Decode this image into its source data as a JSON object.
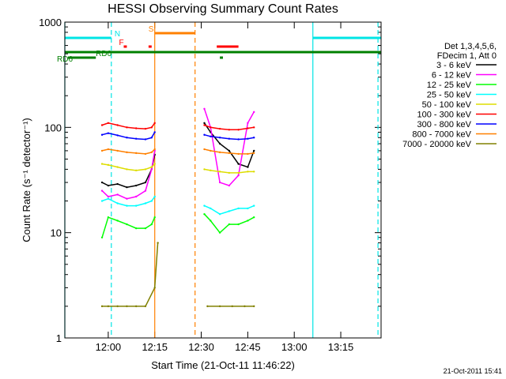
{
  "chart_data": {
    "type": "line",
    "title": "HESSI Observing Summary Count Rates",
    "xlabel": "Start Time (21-Oct-11 11:46:22)",
    "ylabel": "Count Rate (s⁻¹ detector⁻¹)",
    "yscale": "log",
    "ylim": [
      1,
      1000
    ],
    "xlim": [
      "11:46",
      "13:28"
    ],
    "x_ticks": [
      "12:00",
      "12:15",
      "12:30",
      "12:45",
      "13:00",
      "13:15"
    ],
    "y_ticks": [
      "1",
      "10",
      "100",
      "1000"
    ],
    "timestamp": "21-Oct-2011 15:41",
    "legend_header": [
      "Det 1,3,4,5,6,",
      "FDecim 1, Att 0"
    ],
    "flags": [
      {
        "label": "N",
        "color": "#00e5e5",
        "segments": [
          [
            "11:46",
            "12:01"
          ],
          [
            "13:06",
            "13:28"
          ]
        ]
      },
      {
        "label": "S",
        "color": "#ff8000",
        "segments": [
          [
            "12:15",
            "12:28"
          ]
        ]
      },
      {
        "label": "F",
        "color": "#ff0000",
        "segments": [
          [
            "12:05",
            "12:06"
          ],
          [
            "12:13",
            "12:14"
          ],
          [
            "12:35",
            "12:42"
          ]
        ]
      },
      {
        "label": "RD0",
        "color": "#008000",
        "segments": [
          [
            "11:46",
            "13:28"
          ]
        ]
      },
      {
        "label": "RD6",
        "color": "#008000",
        "segments": [
          [
            "11:47",
            "11:56"
          ],
          [
            "12:36",
            "12:37"
          ]
        ]
      }
    ],
    "vlines": [
      {
        "t": "11:46",
        "color": "#00e5e5",
        "style": "solid"
      },
      {
        "t": "12:01",
        "color": "#00e5e5",
        "style": "dashed"
      },
      {
        "t": "12:15",
        "color": "#ff8000",
        "style": "solid"
      },
      {
        "t": "12:28",
        "color": "#ff8000",
        "style": "dashed"
      },
      {
        "t": "13:06",
        "color": "#00e5e5",
        "style": "solid"
      },
      {
        "t": "13:27",
        "color": "#00e5e5",
        "style": "dashed"
      }
    ],
    "series": [
      {
        "name": "3 - 6 keV",
        "color": "#000000",
        "segments": [
          {
            "x": [
              "11:58",
              "12:00",
              "12:03",
              "12:06",
              "12:09",
              "12:12",
              "12:14",
              "12:15"
            ],
            "y": [
              30,
              28,
              29,
              27,
              28,
              30,
              40,
              55
            ]
          },
          {
            "x": [
              "12:31",
              "12:33",
              "12:36",
              "12:39",
              "12:42",
              "12:45",
              "12:47"
            ],
            "y": [
              110,
              90,
              70,
              60,
              45,
              42,
              60
            ]
          }
        ]
      },
      {
        "name": "6 - 12 keV",
        "color": "#ff00ff",
        "segments": [
          {
            "x": [
              "11:58",
              "12:00",
              "12:03",
              "12:06",
              "12:09",
              "12:12",
              "12:14",
              "12:15"
            ],
            "y": [
              25,
              22,
              23,
              21,
              22,
              25,
              40,
              60
            ]
          },
          {
            "x": [
              "12:31",
              "12:33",
              "12:36",
              "12:39",
              "12:42",
              "12:45",
              "12:47"
            ],
            "y": [
              150,
              100,
              30,
              28,
              35,
              110,
              140
            ]
          }
        ]
      },
      {
        "name": "12 - 25 keV",
        "color": "#00ff00",
        "segments": [
          {
            "x": [
              "11:58",
              "12:00",
              "12:03",
              "12:06",
              "12:09",
              "12:12",
              "12:14",
              "12:15"
            ],
            "y": [
              9,
              14,
              13,
              12,
              11,
              11,
              12,
              14
            ]
          },
          {
            "x": [
              "12:31",
              "12:33",
              "12:36",
              "12:39",
              "12:42",
              "12:45",
              "12:47"
            ],
            "y": [
              15,
              13,
              10,
              12,
              12,
              13,
              14
            ]
          }
        ]
      },
      {
        "name": "25 - 50 keV",
        "color": "#00ffff",
        "segments": [
          {
            "x": [
              "11:58",
              "12:00",
              "12:03",
              "12:06",
              "12:09",
              "12:12",
              "12:14",
              "12:15"
            ],
            "y": [
              20,
              21,
              19,
              18,
              18,
              19,
              20,
              22
            ]
          },
          {
            "x": [
              "12:31",
              "12:33",
              "12:36",
              "12:39",
              "12:42",
              "12:45",
              "12:47"
            ],
            "y": [
              18,
              17,
              15,
              16,
              17,
              17,
              18
            ]
          }
        ]
      },
      {
        "name": "50 - 100 keV",
        "color": "#dddd00",
        "segments": [
          {
            "x": [
              "11:58",
              "12:00",
              "12:03",
              "12:06",
              "12:09",
              "12:12",
              "12:14",
              "12:15"
            ],
            "y": [
              45,
              44,
              42,
              40,
              39,
              40,
              42,
              45
            ]
          },
          {
            "x": [
              "12:31",
              "12:33",
              "12:36",
              "12:39",
              "12:42",
              "12:45",
              "12:47"
            ],
            "y": [
              40,
              39,
              38,
              37,
              37,
              38,
              38
            ]
          }
        ]
      },
      {
        "name": "100 - 300 keV",
        "color": "#ff0000",
        "segments": [
          {
            "x": [
              "11:58",
              "12:00",
              "12:03",
              "12:06",
              "12:09",
              "12:12",
              "12:14",
              "12:15"
            ],
            "y": [
              105,
              110,
              105,
              100,
              98,
              97,
              100,
              110
            ]
          },
          {
            "x": [
              "12:31",
              "12:33",
              "12:36",
              "12:39",
              "12:42",
              "12:45",
              "12:47"
            ],
            "y": [
              105,
              100,
              97,
              95,
              95,
              98,
              100
            ]
          }
        ]
      },
      {
        "name": "300 - 800 keV",
        "color": "#0000ff",
        "segments": [
          {
            "x": [
              "11:58",
              "12:00",
              "12:03",
              "12:06",
              "12:09",
              "12:12",
              "12:14",
              "12:15"
            ],
            "y": [
              85,
              88,
              84,
              80,
              78,
              77,
              80,
              90
            ]
          },
          {
            "x": [
              "12:31",
              "12:33",
              "12:36",
              "12:39",
              "12:42",
              "12:45",
              "12:47"
            ],
            "y": [
              85,
              82,
              80,
              78,
              77,
              78,
              80
            ]
          }
        ]
      },
      {
        "name": "800 - 7000 keV",
        "color": "#ff8000",
        "segments": [
          {
            "x": [
              "11:58",
              "12:00",
              "12:03",
              "12:06",
              "12:09",
              "12:12",
              "12:14",
              "12:15"
            ],
            "y": [
              60,
              62,
              60,
              58,
              57,
              56,
              58,
              62
            ]
          },
          {
            "x": [
              "12:31",
              "12:33",
              "12:36",
              "12:39",
              "12:42",
              "12:45",
              "12:47"
            ],
            "y": [
              62,
              60,
              58,
              57,
              56,
              56,
              57
            ]
          }
        ]
      },
      {
        "name": "7000 - 20000 keV",
        "color": "#808000",
        "segments": [
          {
            "x": [
              "11:58",
              "12:00",
              "12:03",
              "12:06",
              "12:09",
              "12:12",
              "12:15",
              "12:16"
            ],
            "y": [
              2,
              2,
              2,
              2,
              2,
              2,
              3,
              8
            ]
          },
          {
            "x": [
              "12:32",
              "12:36",
              "12:40",
              "12:44",
              "12:47"
            ],
            "y": [
              2,
              2,
              2,
              2,
              2
            ]
          }
        ]
      }
    ]
  }
}
